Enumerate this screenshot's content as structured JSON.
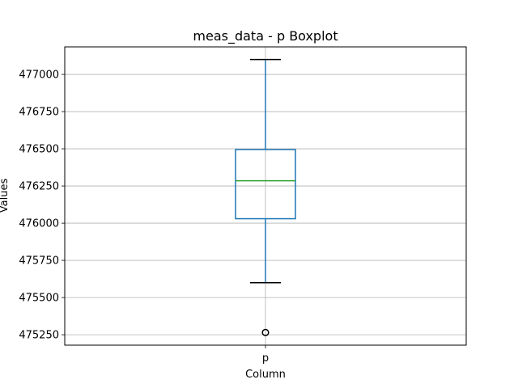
{
  "chart_data": {
    "type": "box",
    "title": "meas_data - p Boxplot",
    "xlabel": "Column",
    "ylabel": "Values",
    "categories": [
      "p"
    ],
    "ylim": [
      475180,
      477185
    ],
    "yticks": [
      475250,
      475500,
      475750,
      476000,
      476250,
      476500,
      476750,
      477000
    ],
    "grid": true,
    "boxes": [
      {
        "category": "p",
        "whisker_low": 475600,
        "q1": 476030,
        "median": 476285,
        "q3": 476495,
        "whisker_high": 477100,
        "outliers": [
          475265
        ]
      }
    ],
    "colors": {
      "box": "#1f77b4",
      "median": "#2ca02c",
      "whisker_cap": "#000000",
      "outlier": "#000000",
      "grid": "#b0b0b0"
    }
  }
}
